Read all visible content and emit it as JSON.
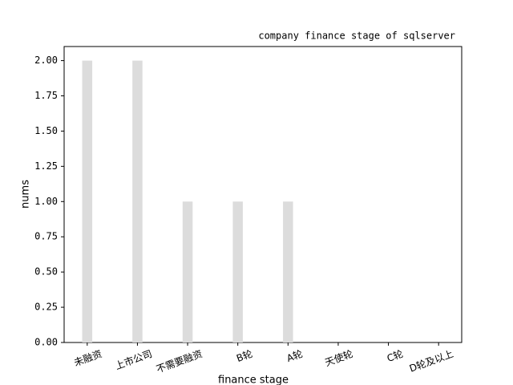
{
  "chart_data": {
    "type": "bar",
    "title": "company finance stage of sqlserver",
    "x_label": "finance stage",
    "y_label": "nums",
    "categories": [
      "未融资",
      "上市公司",
      "不需要融资",
      "B轮",
      "A轮",
      "天使轮",
      "C轮",
      "D轮及以上"
    ],
    "values": [
      2,
      2,
      1,
      1,
      1,
      0,
      0,
      0
    ],
    "color": "#dcdcdc",
    "ylim": [
      0,
      2.1
    ],
    "yticks": [
      {
        "value": 0,
        "label": "0.00"
      },
      {
        "value": 0.25,
        "label": "0.25"
      },
      {
        "value": 0.5,
        "label": "0.50"
      },
      {
        "value": 0.75,
        "label": "0.75"
      },
      {
        "value": 1,
        "label": "1.00"
      },
      {
        "value": 1.25,
        "label": "1.25"
      },
      {
        "value": 1.5,
        "label": "1.50"
      },
      {
        "value": 1.75,
        "label": "1.75"
      },
      {
        "value": 2,
        "label": "2.00"
      }
    ],
    "grid": false
  }
}
